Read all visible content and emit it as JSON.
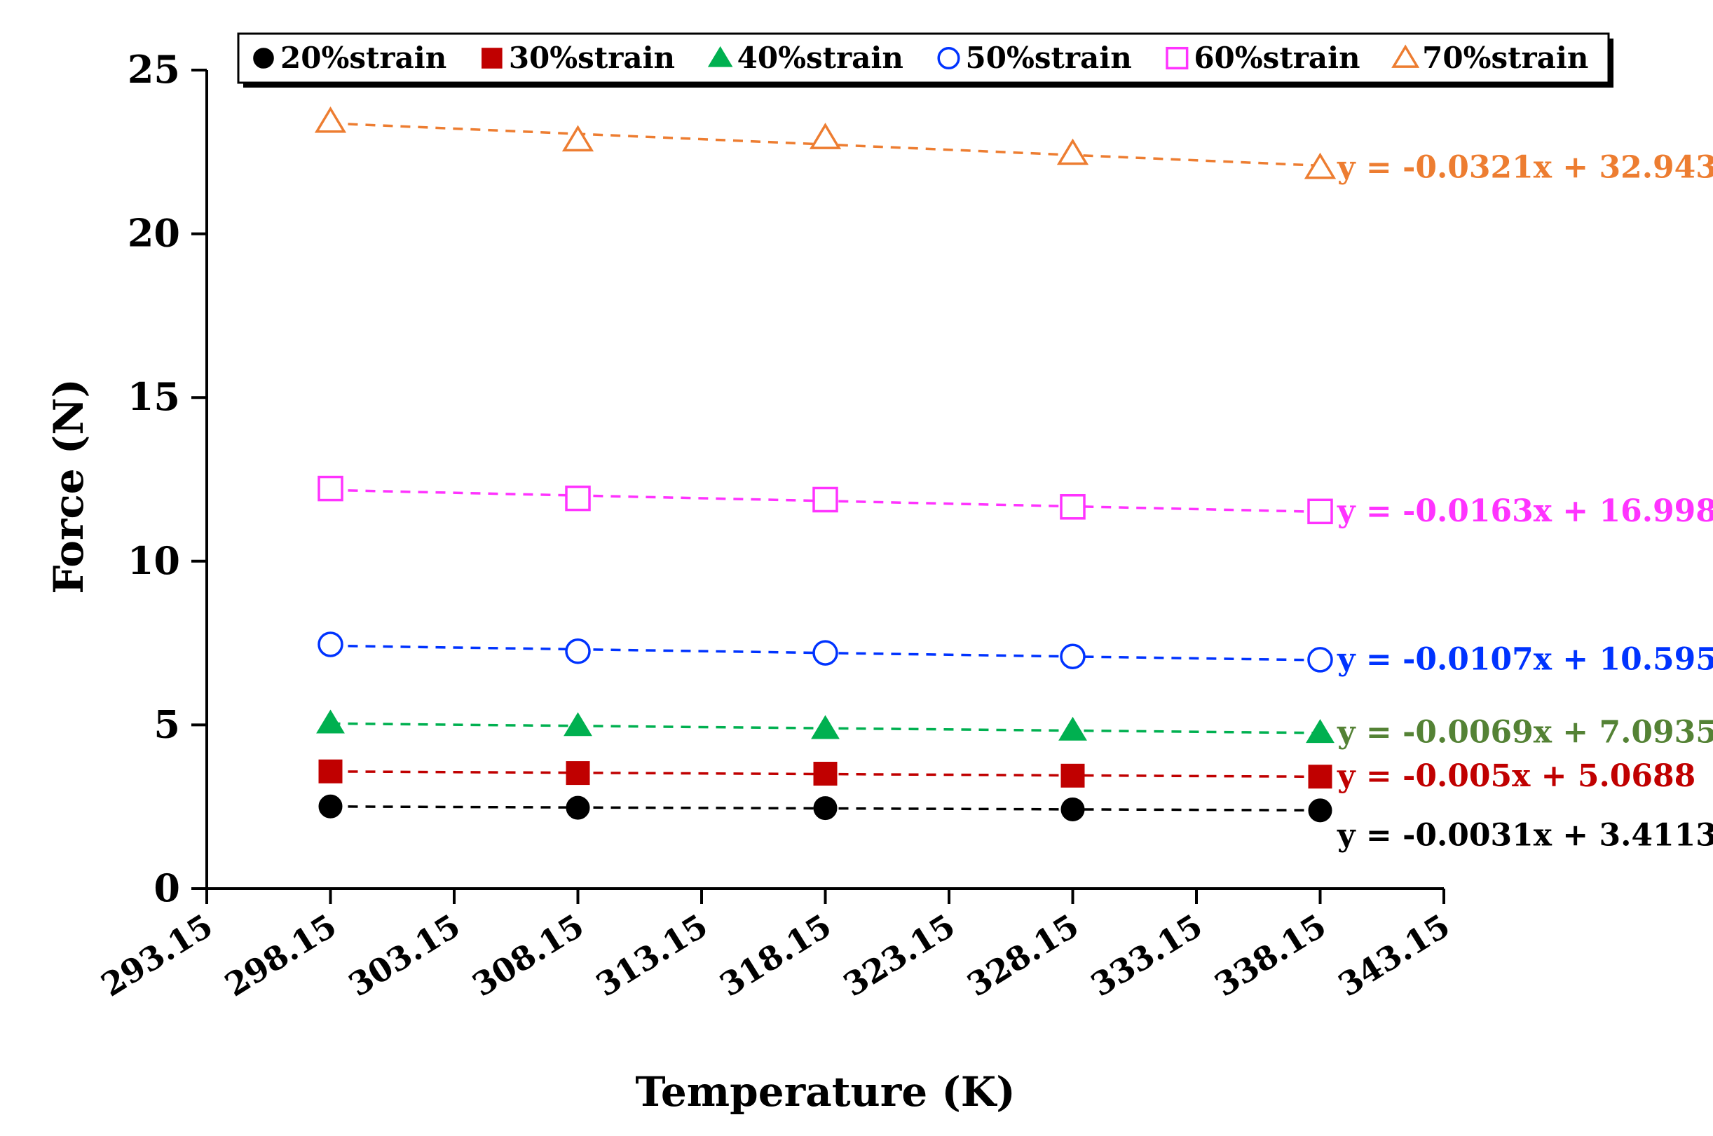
{
  "chart_data": {
    "type": "scatter",
    "title": "",
    "xlabel": "Temperature (K)",
    "ylabel": "Force (N)",
    "xlim": [
      293.15,
      343.15
    ],
    "ylim": [
      0,
      25
    ],
    "x_ticks": [
      "293.15",
      "298.15",
      "303.15",
      "308.15",
      "313.15",
      "318.15",
      "323.15",
      "328.15",
      "333.15",
      "338.15",
      "343.15"
    ],
    "y_ticks": [
      "0",
      "5",
      "10",
      "15",
      "20",
      "25"
    ],
    "x": [
      298.15,
      308.15,
      318.15,
      328.15,
      338.15
    ],
    "trendline": "linear, dashed",
    "legend_position": "top",
    "series": [
      {
        "name": "20%strain",
        "marker": "filled-circle",
        "color": "#000000",
        "values": [
          2.51,
          2.47,
          2.46,
          2.42,
          2.39
        ],
        "equation": "y = -0.0031x + 3.4113",
        "equation_color": "#000000"
      },
      {
        "name": "30%strain",
        "marker": "filled-square",
        "color": "#c00000",
        "values": [
          3.58,
          3.53,
          3.51,
          3.45,
          3.42
        ],
        "equation": "y = -0.005x + 5.0688",
        "equation_color": "#c00000"
      },
      {
        "name": "40%strain",
        "marker": "filled-triangle",
        "color": "#00b050",
        "values": [
          5.05,
          4.97,
          4.88,
          4.83,
          4.76
        ],
        "equation": "y = -0.0069x + 7.0935",
        "equation_color": "#548235"
      },
      {
        "name": "50%strain",
        "marker": "open-circle",
        "color": "#0033ff",
        "values": [
          7.46,
          7.25,
          7.2,
          7.09,
          6.99
        ],
        "equation": "y = -0.0107x + 10.595",
        "equation_color": "#0033ff"
      },
      {
        "name": "60%strain",
        "marker": "open-square",
        "color": "#ff33ff",
        "values": [
          12.22,
          11.92,
          11.88,
          11.66,
          11.52
        ],
        "equation": "y = -0.0163x + 16.998",
        "equation_color": "#ff33ff"
      },
      {
        "name": "70%strain",
        "marker": "open-triangle",
        "color": "#ed7d31",
        "values": [
          23.42,
          22.85,
          22.92,
          22.44,
          22.01
        ],
        "equation": "y = -0.0321x + 32.943",
        "equation_color": "#ed7d31"
      }
    ]
  }
}
